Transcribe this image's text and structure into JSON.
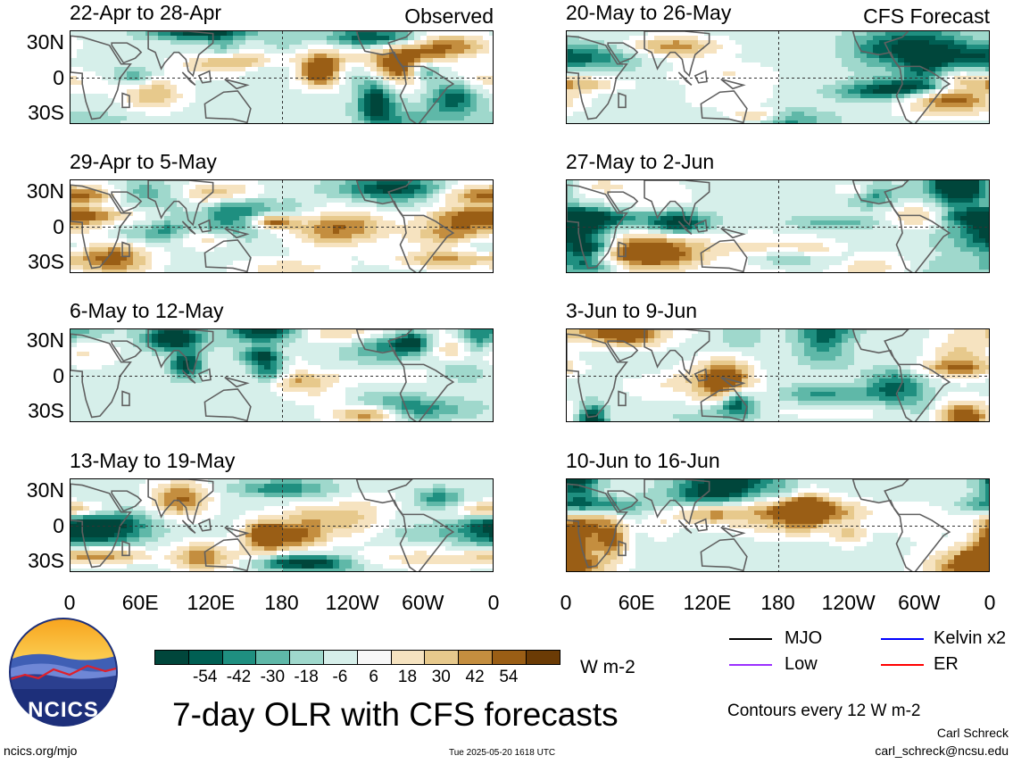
{
  "panels": [
    {
      "label": "22-Apr to 28-Apr",
      "tag": "Observed",
      "col": "left",
      "row": 0,
      "seed": 11
    },
    {
      "label": "29-Apr to 5-May",
      "tag": "",
      "col": "left",
      "row": 1,
      "seed": 23
    },
    {
      "label": "6-May to 12-May",
      "tag": "",
      "col": "left",
      "row": 2,
      "seed": 37
    },
    {
      "label": "13-May to 19-May",
      "tag": "",
      "col": "left",
      "row": 3,
      "seed": 41
    },
    {
      "label": "20-May to 26-May",
      "tag": "CFS Forecast",
      "col": "right",
      "row": 0,
      "seed": 53
    },
    {
      "label": "27-May to 2-Jun",
      "tag": "",
      "col": "right",
      "row": 1,
      "seed": 67
    },
    {
      "label": "3-Jun to 9-Jun",
      "tag": "",
      "col": "right",
      "row": 2,
      "seed": 71
    },
    {
      "label": "10-Jun to 16-Jun",
      "tag": "",
      "col": "right",
      "row": 3,
      "seed": 89
    }
  ],
  "lat_ticks": [
    "30N",
    "0",
    "30S"
  ],
  "lon_ticks": [
    "0",
    "60E",
    "120E",
    "180",
    "120W",
    "60W",
    "0"
  ],
  "colorbar": {
    "colors": [
      "#00463b",
      "#005f53",
      "#1f8f80",
      "#5fb8a8",
      "#9fd8cc",
      "#d6efea",
      "#f7f7f7",
      "#f6e3c0",
      "#e7c98c",
      "#c48e3f",
      "#9a5e15",
      "#6b3b05"
    ],
    "tick_labels": [
      "-54",
      "-42",
      "-30",
      "-18",
      "-6",
      "6",
      "18",
      "30",
      "42",
      "54"
    ],
    "units": "W m-2"
  },
  "title": "7-day OLR with CFS forecasts",
  "legend": [
    {
      "label": "MJO",
      "color": "#000000"
    },
    {
      "label": "Kelvin x2",
      "color": "#0000ff"
    },
    {
      "label": "Low",
      "color": "#9b30ff"
    },
    {
      "label": "ER",
      "color": "#ff0000"
    }
  ],
  "contours_note": "Contours every 12 W m-2",
  "logo_text": "NCICS",
  "footer": {
    "site": "ncics.org/mjo",
    "timestamp": "Tue 2025-05-20 1618 UTC",
    "author": "Carl Schreck",
    "email": "carl_schreck@ncsu.edu"
  },
  "chart_data": [
    {
      "type": "heatmap",
      "title": "22-Apr to 28-Apr",
      "subtitle": "Observed",
      "ylabel": "",
      "xlabel": "",
      "lat_ticks": [
        "30N",
        "0",
        "30S"
      ],
      "lon_ticks": [
        "0",
        "60E",
        "120E",
        "180",
        "120W",
        "60W",
        "0"
      ],
      "value_range": [
        -60,
        60
      ],
      "units": "W m-2"
    },
    {
      "type": "heatmap",
      "title": "29-Apr to 5-May",
      "lat_ticks": [
        "30N",
        "0",
        "30S"
      ],
      "lon_ticks": [
        "0",
        "60E",
        "120E",
        "180",
        "120W",
        "60W",
        "0"
      ],
      "value_range": [
        -60,
        60
      ],
      "units": "W m-2"
    },
    {
      "type": "heatmap",
      "title": "6-May to 12-May",
      "lat_ticks": [
        "30N",
        "0",
        "30S"
      ],
      "lon_ticks": [
        "0",
        "60E",
        "120E",
        "180",
        "120W",
        "60W",
        "0"
      ],
      "value_range": [
        -60,
        60
      ],
      "units": "W m-2"
    },
    {
      "type": "heatmap",
      "title": "13-May to 19-May",
      "lat_ticks": [
        "30N",
        "0",
        "30S"
      ],
      "lon_ticks": [
        "0",
        "60E",
        "120E",
        "180",
        "120W",
        "60W",
        "0"
      ],
      "value_range": [
        -60,
        60
      ],
      "units": "W m-2"
    },
    {
      "type": "heatmap",
      "title": "20-May to 26-May",
      "subtitle": "CFS Forecast",
      "lat_ticks": [
        "30N",
        "0",
        "30S"
      ],
      "lon_ticks": [
        "0",
        "60E",
        "120E",
        "180",
        "120W",
        "60W",
        "0"
      ],
      "value_range": [
        -60,
        60
      ],
      "units": "W m-2"
    },
    {
      "type": "heatmap",
      "title": "27-May to 2-Jun",
      "lat_ticks": [
        "30N",
        "0",
        "30S"
      ],
      "lon_ticks": [
        "0",
        "60E",
        "120E",
        "180",
        "120W",
        "60W",
        "0"
      ],
      "value_range": [
        -60,
        60
      ],
      "units": "W m-2"
    },
    {
      "type": "heatmap",
      "title": "3-Jun to 9-Jun",
      "lat_ticks": [
        "30N",
        "0",
        "30S"
      ],
      "lon_ticks": [
        "0",
        "60E",
        "120E",
        "180",
        "120W",
        "60W",
        "0"
      ],
      "value_range": [
        -60,
        60
      ],
      "units": "W m-2"
    },
    {
      "type": "heatmap",
      "title": "10-Jun to 16-Jun",
      "lat_ticks": [
        "30N",
        "0",
        "30S"
      ],
      "lon_ticks": [
        "0",
        "60E",
        "120E",
        "180",
        "120W",
        "60W",
        "0"
      ],
      "value_range": [
        -60,
        60
      ],
      "units": "W m-2"
    }
  ]
}
